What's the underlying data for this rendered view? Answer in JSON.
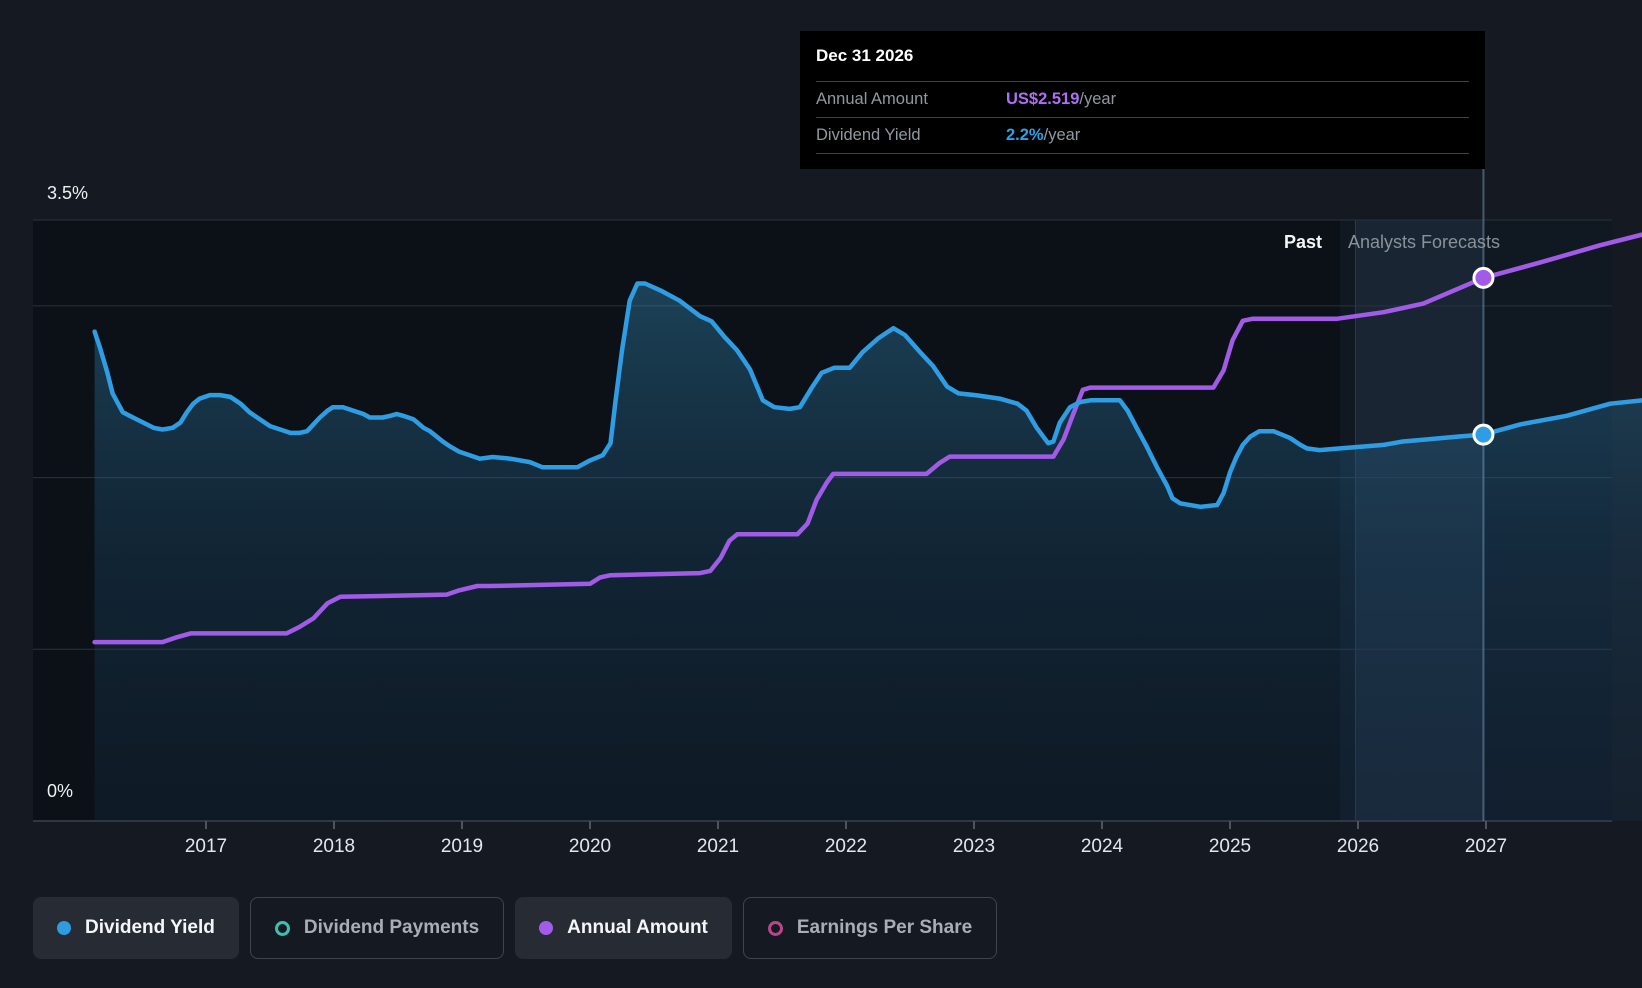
{
  "tooltip": {
    "title": "Dec 31 2026",
    "rows": [
      {
        "label": "Annual Amount",
        "value": "US$2.519",
        "suffix": "/year",
        "color": "#b06df5"
      },
      {
        "label": "Dividend Yield",
        "value": "2.2%",
        "suffix": "/year",
        "color": "#2da0e8"
      }
    ]
  },
  "plot": {
    "past_label": "Past",
    "forecast_label": "Analysts Forecasts",
    "y_top_label": "3.5%",
    "y_bottom_label": "0%"
  },
  "legend": {
    "items": [
      {
        "label": "Dividend Yield",
        "color": "#2e9ce0",
        "active": true
      },
      {
        "label": "Dividend Payments",
        "color": "#3fbfb0",
        "active": false
      },
      {
        "label": "Annual Amount",
        "color": "#a35ce8",
        "active": true
      },
      {
        "label": "Earnings Per Share",
        "color": "#bb4589",
        "active": false
      }
    ]
  },
  "colors": {
    "page_bg": "#151a22",
    "plot_bg": "#0c1117",
    "gridline": "#2b323c",
    "zero_line": "#3c434b",
    "tick": "#4d545c",
    "yield_line": "#2f9de3",
    "amount_line": "#a15be6",
    "marker_stroke": "#ffffff",
    "vline": "#7fa9cd"
  },
  "chart_data": {
    "type": "line",
    "x_ticks": [
      2017,
      2018,
      2019,
      2020,
      2021,
      2022,
      2023,
      2024,
      2025,
      2026,
      2027
    ],
    "x_range_years": [
      2016.13,
      2028.22
    ],
    "y_axis_percent": {
      "min": 0,
      "max": 3.5,
      "gridlines_pct": [
        3.5,
        3,
        2,
        1,
        0
      ],
      "top_label": "3.5%",
      "zero_label": "0%"
    },
    "divider_year": 2025.86,
    "highlight_band_years": [
      2025.98,
      2026.98
    ],
    "hover_date": "Dec 31 2026",
    "legend_position": "bottom-left",
    "series": [
      {
        "name": "Dividend Yield",
        "unit": "percent",
        "color": "#2f9de3",
        "area": true,
        "marker": {
          "year": 2026.98,
          "value": 2.25
        },
        "points": [
          [
            2016.13,
            2.85
          ],
          [
            2016.17,
            2.76
          ],
          [
            2016.23,
            2.61
          ],
          [
            2016.27,
            2.49
          ],
          [
            2016.35,
            2.38
          ],
          [
            2016.43,
            2.35
          ],
          [
            2016.51,
            2.32
          ],
          [
            2016.59,
            2.29
          ],
          [
            2016.66,
            2.28
          ],
          [
            2016.74,
            2.29
          ],
          [
            2016.8,
            2.32
          ],
          [
            2016.85,
            2.38
          ],
          [
            2016.9,
            2.43
          ],
          [
            2016.95,
            2.46
          ],
          [
            2017.03,
            2.48
          ],
          [
            2017.11,
            2.48
          ],
          [
            2017.19,
            2.47
          ],
          [
            2017.27,
            2.43
          ],
          [
            2017.34,
            2.38
          ],
          [
            2017.42,
            2.34
          ],
          [
            2017.5,
            2.3
          ],
          [
            2017.58,
            2.28
          ],
          [
            2017.66,
            2.26
          ],
          [
            2017.73,
            2.26
          ],
          [
            2017.79,
            2.27
          ],
          [
            2017.84,
            2.31
          ],
          [
            2017.89,
            2.35
          ],
          [
            2017.95,
            2.39
          ],
          [
            2017.99,
            2.41
          ],
          [
            2018.07,
            2.41
          ],
          [
            2018.15,
            2.39
          ],
          [
            2018.23,
            2.37
          ],
          [
            2018.28,
            2.35
          ],
          [
            2018.38,
            2.35
          ],
          [
            2018.44,
            2.36
          ],
          [
            2018.49,
            2.37
          ],
          [
            2018.54,
            2.36
          ],
          [
            2018.62,
            2.34
          ],
          [
            2018.7,
            2.29
          ],
          [
            2018.75,
            2.27
          ],
          [
            2018.8,
            2.24
          ],
          [
            2018.85,
            2.21
          ],
          [
            2018.91,
            2.18
          ],
          [
            2018.98,
            2.15
          ],
          [
            2019.06,
            2.13
          ],
          [
            2019.14,
            2.11
          ],
          [
            2019.24,
            2.12
          ],
          [
            2019.38,
            2.11
          ],
          [
            2019.53,
            2.09
          ],
          [
            2019.63,
            2.06
          ],
          [
            2019.71,
            2.06
          ],
          [
            2019.8,
            2.06
          ],
          [
            2019.9,
            2.06
          ],
          [
            2020.0,
            2.1
          ],
          [
            2020.1,
            2.13
          ],
          [
            2020.16,
            2.2
          ],
          [
            2020.2,
            2.45
          ],
          [
            2020.25,
            2.74
          ],
          [
            2020.31,
            3.03
          ],
          [
            2020.37,
            3.13
          ],
          [
            2020.43,
            3.13
          ],
          [
            2020.55,
            3.09
          ],
          [
            2020.7,
            3.03
          ],
          [
            2020.86,
            2.94
          ],
          [
            2020.95,
            2.91
          ],
          [
            2021.05,
            2.82
          ],
          [
            2021.15,
            2.74
          ],
          [
            2021.25,
            2.63
          ],
          [
            2021.35,
            2.45
          ],
          [
            2021.44,
            2.41
          ],
          [
            2021.56,
            2.4
          ],
          [
            2021.64,
            2.41
          ],
          [
            2021.73,
            2.52
          ],
          [
            2021.81,
            2.61
          ],
          [
            2021.91,
            2.64
          ],
          [
            2022.03,
            2.64
          ],
          [
            2022.13,
            2.73
          ],
          [
            2022.25,
            2.81
          ],
          [
            2022.37,
            2.87
          ],
          [
            2022.46,
            2.83
          ],
          [
            2022.58,
            2.73
          ],
          [
            2022.68,
            2.65
          ],
          [
            2022.79,
            2.53
          ],
          [
            2022.88,
            2.49
          ],
          [
            2023.01,
            2.48
          ],
          [
            2023.2,
            2.46
          ],
          [
            2023.34,
            2.43
          ],
          [
            2023.41,
            2.39
          ],
          [
            2023.49,
            2.29
          ],
          [
            2023.58,
            2.2
          ],
          [
            2023.62,
            2.21
          ],
          [
            2023.67,
            2.32
          ],
          [
            2023.75,
            2.41
          ],
          [
            2023.83,
            2.44
          ],
          [
            2023.91,
            2.45
          ],
          [
            2024.06,
            2.45
          ],
          [
            2024.14,
            2.45
          ],
          [
            2024.2,
            2.39
          ],
          [
            2024.27,
            2.29
          ],
          [
            2024.35,
            2.18
          ],
          [
            2024.43,
            2.06
          ],
          [
            2024.51,
            1.95
          ],
          [
            2024.55,
            1.88
          ],
          [
            2024.61,
            1.85
          ],
          [
            2024.77,
            1.83
          ],
          [
            2024.9,
            1.84
          ],
          [
            2024.95,
            1.91
          ],
          [
            2025.0,
            2.03
          ],
          [
            2025.05,
            2.12
          ],
          [
            2025.1,
            2.19
          ],
          [
            2025.16,
            2.24
          ],
          [
            2025.23,
            2.27
          ],
          [
            2025.34,
            2.27
          ],
          [
            2025.47,
            2.23
          ],
          [
            2025.55,
            2.19
          ],
          [
            2025.6,
            2.17
          ],
          [
            2025.7,
            2.16
          ],
          [
            2025.86,
            2.17
          ],
          [
            2026.02,
            2.18
          ],
          [
            2026.2,
            2.19
          ],
          [
            2026.35,
            2.21
          ],
          [
            2026.51,
            2.22
          ],
          [
            2026.8,
            2.24
          ],
          [
            2026.98,
            2.25
          ],
          [
            2027.27,
            2.31
          ],
          [
            2027.63,
            2.36
          ],
          [
            2027.97,
            2.43
          ],
          [
            2028.22,
            2.45
          ]
        ]
      },
      {
        "name": "Annual Amount",
        "unit": "usd_per_year",
        "color": "#a15be6",
        "area": false,
        "marker": {
          "year": 2026.98,
          "value": 2.519
        },
        "points": [
          [
            2016.13,
            0.83
          ],
          [
            2016.66,
            0.83
          ],
          [
            2016.76,
            0.85
          ],
          [
            2016.88,
            0.87
          ],
          [
            2017.63,
            0.87
          ],
          [
            2017.73,
            0.9
          ],
          [
            2017.84,
            0.94
          ],
          [
            2017.95,
            1.01
          ],
          [
            2018.05,
            1.04
          ],
          [
            2018.88,
            1.05
          ],
          [
            2018.98,
            1.07
          ],
          [
            2019.12,
            1.09
          ],
          [
            2019.22,
            1.09
          ],
          [
            2020.0,
            1.1
          ],
          [
            2020.08,
            1.13
          ],
          [
            2020.16,
            1.14
          ],
          [
            2020.86,
            1.15
          ],
          [
            2020.94,
            1.16
          ],
          [
            2021.02,
            1.22
          ],
          [
            2021.09,
            1.3
          ],
          [
            2021.15,
            1.33
          ],
          [
            2021.62,
            1.33
          ],
          [
            2021.7,
            1.38
          ],
          [
            2021.77,
            1.49
          ],
          [
            2021.85,
            1.57
          ],
          [
            2021.9,
            1.61
          ],
          [
            2022.63,
            1.61
          ],
          [
            2022.73,
            1.66
          ],
          [
            2022.81,
            1.69
          ],
          [
            2023.62,
            1.69
          ],
          [
            2023.7,
            1.77
          ],
          [
            2023.77,
            1.88
          ],
          [
            2023.85,
            2.0
          ],
          [
            2023.91,
            2.01
          ],
          [
            2024.87,
            2.01
          ],
          [
            2024.95,
            2.09
          ],
          [
            2025.02,
            2.23
          ],
          [
            2025.1,
            2.32
          ],
          [
            2025.18,
            2.33
          ],
          [
            2025.84,
            2.33
          ],
          [
            2026.2,
            2.36
          ],
          [
            2026.51,
            2.4
          ],
          [
            2026.98,
            2.519
          ],
          [
            2027.42,
            2.59
          ],
          [
            2027.89,
            2.67
          ],
          [
            2028.22,
            2.72
          ]
        ]
      }
    ]
  }
}
